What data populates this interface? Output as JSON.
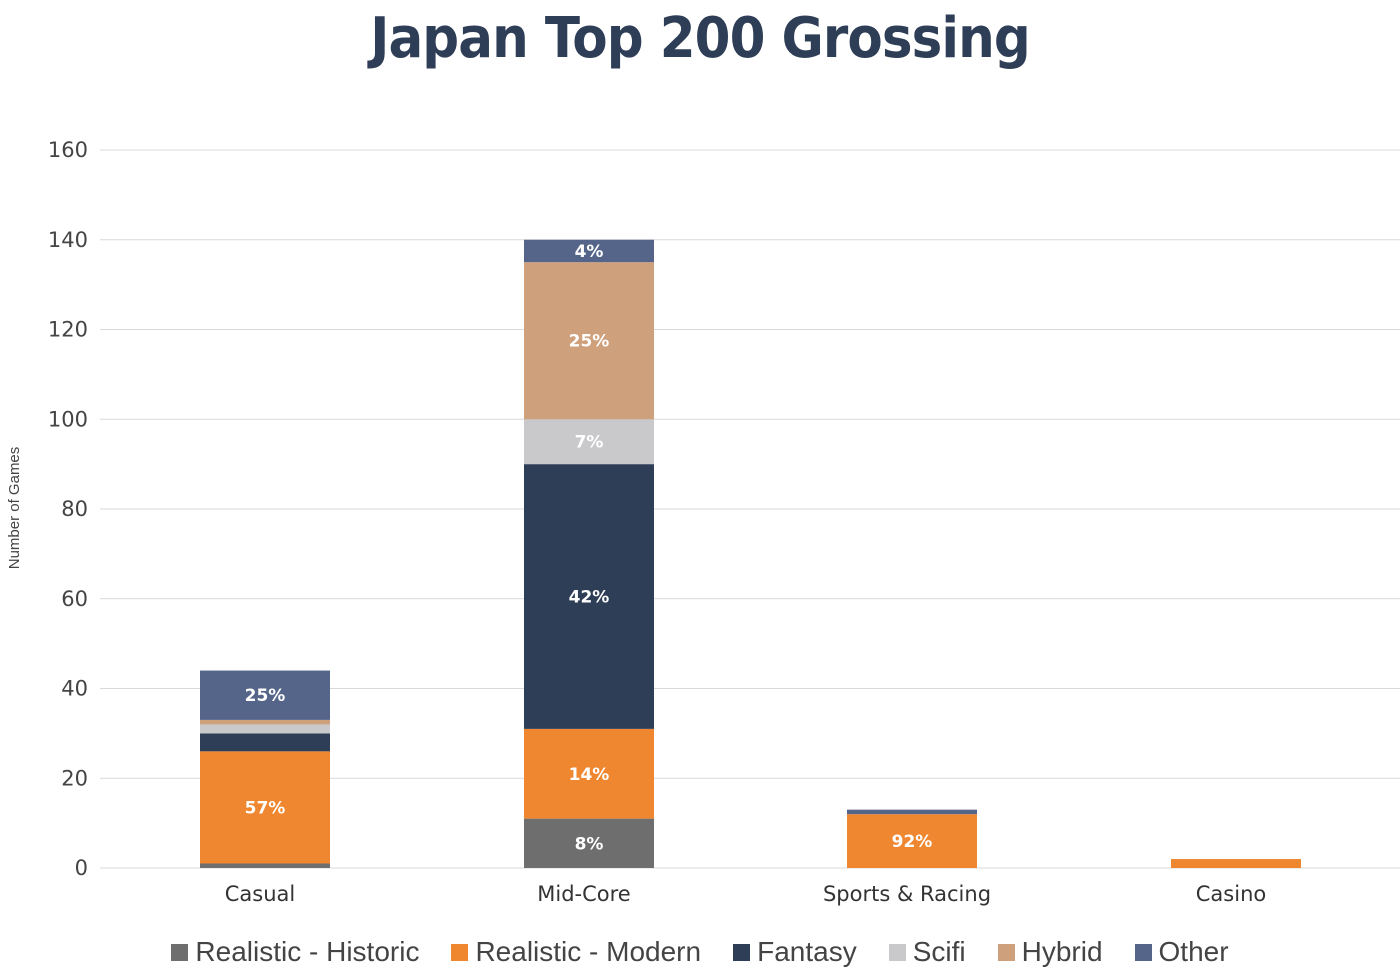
{
  "chart_data": {
    "type": "bar",
    "stacked": true,
    "title": "Japan Top 200 Grossing",
    "xlabel": "",
    "ylabel": "Number of Games",
    "ylim": [
      0,
      160
    ],
    "yticks": [
      0,
      20,
      40,
      60,
      80,
      100,
      120,
      140,
      160
    ],
    "grid": true,
    "legend_position": "bottom",
    "categories": [
      "Casual",
      "Mid-Core",
      "Sports & Racing",
      "Casino"
    ],
    "series": [
      {
        "name": "Realistic - Historic",
        "color": "#6e6e6e",
        "values": [
          1,
          11,
          0,
          0
        ],
        "labels": [
          "",
          "8%",
          "",
          ""
        ]
      },
      {
        "name": "Realistic - Modern",
        "color": "#ef8731",
        "values": [
          25,
          20,
          12,
          2
        ],
        "labels": [
          "57%",
          "14%",
          "92%",
          ""
        ]
      },
      {
        "name": "Fantasy",
        "color": "#2f3e57",
        "values": [
          4,
          59,
          0,
          0
        ],
        "labels": [
          "",
          "42%",
          "",
          ""
        ]
      },
      {
        "name": "Scifi",
        "color": "#c9c9cb",
        "values": [
          2,
          10,
          0,
          0
        ],
        "labels": [
          "",
          "7%",
          "",
          ""
        ]
      },
      {
        "name": "Hybrid",
        "color": "#cfa07c",
        "values": [
          1,
          35,
          0,
          0
        ],
        "labels": [
          "",
          "25%",
          "",
          ""
        ]
      },
      {
        "name": "Other",
        "color": "#556589",
        "values": [
          11,
          5,
          1,
          0
        ],
        "labels": [
          "25%",
          "4%",
          "",
          ""
        ]
      }
    ]
  }
}
